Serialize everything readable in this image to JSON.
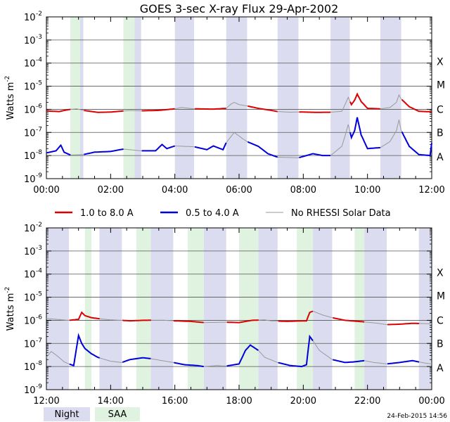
{
  "chart_data": [
    {
      "type": "line",
      "title": "GOES 3-sec X-ray Flux   29-Apr-2002",
      "ylabel": "Watts m",
      "ylabel_superscript": "-2",
      "y_scale": "log",
      "ylim": [
        1e-09,
        0.01
      ],
      "y_ticks": [
        {
          "base": "10",
          "exp": "-2"
        },
        {
          "base": "10",
          "exp": "-3"
        },
        {
          "base": "10",
          "exp": "-4"
        },
        {
          "base": "10",
          "exp": "-5"
        },
        {
          "base": "10",
          "exp": "-6"
        },
        {
          "base": "10",
          "exp": "-7"
        },
        {
          "base": "10",
          "exp": "-8"
        },
        {
          "base": "10",
          "exp": "-9"
        }
      ],
      "x_ticks": [
        "00:00",
        "02:00",
        "04:00",
        "06:00",
        "08:00",
        "10:00",
        "12:00"
      ],
      "xlim_hours": [
        0,
        12
      ],
      "class_labels": [
        "A",
        "B",
        "C",
        "M",
        "X"
      ],
      "grid": "horizontal",
      "night_bands_hours": [
        [
          0.75,
          1.15
        ],
        [
          2.4,
          2.95
        ],
        [
          4.0,
          4.6
        ],
        [
          5.6,
          6.25
        ],
        [
          7.2,
          7.85
        ],
        [
          8.85,
          9.45
        ],
        [
          10.4,
          11.05
        ]
      ],
      "saa_bands_hours": [
        [
          0.75,
          1.05
        ],
        [
          2.4,
          2.75
        ]
      ],
      "series": [
        {
          "name": "1.0 to 8.0 A",
          "color": "#dd0000",
          "points": [
            [
              0,
              8.5e-07
            ],
            [
              0.4,
              8e-07
            ],
            [
              0.6,
              9.2e-07
            ],
            [
              0.75,
              1e-06
            ],
            [
              0.95,
              1.05e-06
            ],
            [
              1.15,
              9e-07
            ],
            [
              1.6,
              7.4e-07
            ],
            [
              2.0,
              7.6e-07
            ],
            [
              2.4,
              8.5e-07
            ],
            [
              2.6,
              8.8e-07
            ],
            [
              2.95,
              8.6e-07
            ],
            [
              3.5,
              9e-07
            ],
            [
              4.0,
              1.05e-06
            ],
            [
              4.2,
              1.2e-06
            ],
            [
              4.6,
              1.05e-06
            ],
            [
              5.2,
              1.02e-06
            ],
            [
              5.6,
              1.1e-06
            ],
            [
              5.75,
              1.7e-06
            ],
            [
              5.85,
              2e-06
            ],
            [
              6.0,
              1.6e-06
            ],
            [
              6.25,
              1.4e-06
            ],
            [
              6.6,
              1.1e-06
            ],
            [
              7.0,
              9e-07
            ],
            [
              7.2,
              8e-07
            ],
            [
              7.6,
              7.5e-07
            ],
            [
              7.85,
              7.7e-07
            ],
            [
              8.4,
              7.4e-07
            ],
            [
              8.85,
              7.5e-07
            ],
            [
              9.2,
              8.2e-07
            ],
            [
              9.3,
              1.6e-06
            ],
            [
              9.4,
              3.3e-06
            ],
            [
              9.5,
              1.6e-06
            ],
            [
              9.6,
              2.5e-06
            ],
            [
              9.68,
              4.6e-06
            ],
            [
              9.8,
              2.2e-06
            ],
            [
              10.0,
              1.1e-06
            ],
            [
              10.4,
              1.05e-06
            ],
            [
              10.7,
              1.2e-06
            ],
            [
              10.9,
              2e-06
            ],
            [
              10.98,
              4.2e-06
            ],
            [
              11.05,
              2.8e-06
            ],
            [
              11.3,
              1.3e-06
            ],
            [
              11.6,
              8.2e-07
            ],
            [
              12,
              7.8e-07
            ]
          ]
        },
        {
          "name": "0.5 to 4.0 A",
          "color": "#0000dd",
          "points": [
            [
              0,
              1.3e-08
            ],
            [
              0.3,
              1.6e-08
            ],
            [
              0.45,
              2.8e-08
            ],
            [
              0.55,
              1.4e-08
            ],
            [
              0.75,
              1.05e-08
            ],
            [
              1.15,
              1.1e-08
            ],
            [
              1.5,
              1.4e-08
            ],
            [
              2.0,
              1.5e-08
            ],
            [
              2.3,
              1.8e-08
            ],
            [
              2.4,
              1.9e-08
            ],
            [
              2.95,
              1.6e-08
            ],
            [
              3.4,
              1.6e-08
            ],
            [
              3.6,
              3e-08
            ],
            [
              3.75,
              2e-08
            ],
            [
              4.0,
              2.6e-08
            ],
            [
              4.6,
              2.4e-08
            ],
            [
              5.0,
              1.8e-08
            ],
            [
              5.2,
              2.6e-08
            ],
            [
              5.5,
              1.8e-08
            ],
            [
              5.6,
              3.6e-08
            ],
            [
              5.85,
              1e-07
            ],
            [
              6.1,
              5.5e-08
            ],
            [
              6.25,
              4e-08
            ],
            [
              6.6,
              2.5e-08
            ],
            [
              6.9,
              1.2e-08
            ],
            [
              7.2,
              8.5e-09
            ],
            [
              7.85,
              8e-09
            ],
            [
              8.3,
              1.2e-08
            ],
            [
              8.6,
              1e-08
            ],
            [
              8.85,
              1e-08
            ],
            [
              9.2,
              2.5e-08
            ],
            [
              9.3,
              7e-08
            ],
            [
              9.4,
              2.2e-07
            ],
            [
              9.5,
              6e-08
            ],
            [
              9.6,
              1.2e-07
            ],
            [
              9.68,
              4.5e-07
            ],
            [
              9.8,
              8e-08
            ],
            [
              10.0,
              2e-08
            ],
            [
              10.4,
              2.2e-08
            ],
            [
              10.7,
              4e-08
            ],
            [
              10.9,
              1.2e-07
            ],
            [
              10.98,
              3.5e-07
            ],
            [
              11.05,
              1.2e-07
            ],
            [
              11.3,
              2.5e-08
            ],
            [
              11.6,
              1.1e-08
            ],
            [
              11.95,
              1e-08
            ],
            [
              12,
              3.5e-08
            ]
          ]
        }
      ],
      "no_rhessi_segments_hours": [
        [
          0.75,
          1.15
        ],
        [
          2.4,
          2.95
        ],
        [
          4.0,
          4.6
        ],
        [
          5.6,
          6.25
        ],
        [
          7.2,
          7.85
        ],
        [
          8.85,
          9.45
        ],
        [
          10.4,
          11.05
        ]
      ]
    },
    {
      "type": "line",
      "ylabel": "Watts m",
      "ylabel_superscript": "-2",
      "y_scale": "log",
      "ylim": [
        1e-09,
        0.01
      ],
      "y_ticks": [
        {
          "base": "10",
          "exp": "-2"
        },
        {
          "base": "10",
          "exp": "-3"
        },
        {
          "base": "10",
          "exp": "-4"
        },
        {
          "base": "10",
          "exp": "-5"
        },
        {
          "base": "10",
          "exp": "-6"
        },
        {
          "base": "10",
          "exp": "-7"
        },
        {
          "base": "10",
          "exp": "-8"
        },
        {
          "base": "10",
          "exp": "-9"
        }
      ],
      "x_ticks": [
        "12:00",
        "14:00",
        "16:00",
        "18:00",
        "20:00",
        "22:00",
        "00:00"
      ],
      "xlim_hours": [
        12,
        24
      ],
      "class_labels": [
        "A",
        "B",
        "C",
        "M",
        "X"
      ],
      "grid": "horizontal",
      "night_bands_hours": [
        [
          12.0,
          12.7
        ],
        [
          13.65,
          14.35
        ],
        [
          15.25,
          15.95
        ],
        [
          16.9,
          17.6
        ],
        [
          18.6,
          19.2
        ],
        [
          20.3,
          20.9
        ],
        [
          21.9,
          22.6
        ],
        [
          23.6,
          24.0
        ]
      ],
      "saa_bands_hours": [
        [
          13.2,
          13.4
        ],
        [
          14.8,
          15.25
        ],
        [
          16.4,
          16.9
        ],
        [
          18.0,
          18.6
        ],
        [
          19.8,
          20.3
        ],
        [
          21.6,
          21.9
        ]
      ],
      "series": [
        {
          "name": "1.0 to 8.0 A",
          "color": "#dd0000",
          "points": [
            [
              12.0,
              1.2e-06
            ],
            [
              12.5,
              1.05e-06
            ],
            [
              12.7,
              1e-06
            ],
            [
              13.0,
              1.1e-06
            ],
            [
              13.1,
              2.2e-06
            ],
            [
              13.2,
              1.6e-06
            ],
            [
              13.4,
              1.3e-06
            ],
            [
              13.7,
              1.15e-06
            ],
            [
              14.0,
              1.05e-06
            ],
            [
              14.35,
              1e-06
            ],
            [
              14.6,
              9.5e-07
            ],
            [
              15.0,
              1e-06
            ],
            [
              15.6,
              1.02e-06
            ],
            [
              16.0,
              9.5e-07
            ],
            [
              16.5,
              9e-07
            ],
            [
              16.9,
              8e-07
            ],
            [
              17.3,
              8.1e-07
            ],
            [
              17.6,
              8.3e-07
            ],
            [
              18.0,
              8e-07
            ],
            [
              18.4,
              1e-06
            ],
            [
              18.8,
              1.05e-06
            ],
            [
              19.0,
              9.5e-07
            ],
            [
              19.5,
              9e-07
            ],
            [
              19.8,
              9.3e-07
            ],
            [
              20.1,
              9.5e-07
            ],
            [
              20.2,
              2.2e-06
            ],
            [
              20.3,
              2.5e-06
            ],
            [
              20.6,
              1.7e-06
            ],
            [
              20.9,
              1.3e-06
            ],
            [
              21.3,
              1e-06
            ],
            [
              21.8,
              8.8e-07
            ],
            [
              22.3,
              7.5e-07
            ],
            [
              22.6,
              6.5e-07
            ],
            [
              23.0,
              6.8e-07
            ],
            [
              23.4,
              7.4e-07
            ],
            [
              23.8,
              7.2e-07
            ],
            [
              24.0,
              7e-07
            ]
          ]
        },
        {
          "name": "0.5 to 4.0 A",
          "color": "#0000dd",
          "points": [
            [
              12.0,
              2.5e-08
            ],
            [
              12.15,
              4.5e-08
            ],
            [
              12.35,
              2.8e-08
            ],
            [
              12.55,
              1.6e-08
            ],
            [
              12.7,
              1.3e-08
            ],
            [
              12.85,
              1.1e-08
            ],
            [
              13.0,
              2.2e-07
            ],
            [
              13.1,
              1e-07
            ],
            [
              13.2,
              6e-08
            ],
            [
              13.4,
              3.6e-08
            ],
            [
              13.6,
              2.5e-08
            ],
            [
              14.0,
              1.7e-08
            ],
            [
              14.35,
              1.5e-08
            ],
            [
              14.6,
              2e-08
            ],
            [
              15.0,
              2.4e-08
            ],
            [
              15.25,
              2.2e-08
            ],
            [
              15.6,
              1.8e-08
            ],
            [
              15.95,
              1.5e-08
            ],
            [
              16.3,
              1.2e-08
            ],
            [
              16.7,
              1.1e-08
            ],
            [
              16.9,
              1e-08
            ],
            [
              17.3,
              1.1e-08
            ],
            [
              17.6,
              1.05e-08
            ],
            [
              18.0,
              1.3e-08
            ],
            [
              18.2,
              5e-08
            ],
            [
              18.35,
              8.5e-08
            ],
            [
              18.6,
              5e-08
            ],
            [
              18.8,
              2.5e-08
            ],
            [
              19.2,
              1.5e-08
            ],
            [
              19.6,
              1.1e-08
            ],
            [
              19.95,
              1e-08
            ],
            [
              20.1,
              1.2e-08
            ],
            [
              20.2,
              2e-07
            ],
            [
              20.3,
              1.3e-07
            ],
            [
              20.5,
              5e-08
            ],
            [
              20.9,
              2e-08
            ],
            [
              21.3,
              1.5e-08
            ],
            [
              21.6,
              1.6e-08
            ],
            [
              21.9,
              1.8e-08
            ],
            [
              22.2,
              1.5e-08
            ],
            [
              22.6,
              1.3e-08
            ],
            [
              23.0,
              1.5e-08
            ],
            [
              23.4,
              1.8e-08
            ],
            [
              23.8,
              1.4e-08
            ],
            [
              24.0,
              1.3e-08
            ]
          ]
        }
      ],
      "no_rhessi_segments_hours": [
        [
          12.0,
          12.7
        ],
        [
          13.65,
          14.35
        ],
        [
          15.25,
          15.95
        ],
        [
          16.9,
          17.6
        ],
        [
          18.6,
          19.2
        ],
        [
          20.3,
          20.9
        ],
        [
          21.9,
          22.6
        ],
        [
          23.6,
          24.0
        ]
      ]
    }
  ],
  "legend": {
    "items": [
      {
        "label": "1.0 to 8.0 A",
        "color": "#dd0000"
      },
      {
        "label": "0.5 to 4.0 A",
        "color": "#0000dd"
      },
      {
        "label": "No RHESSI Solar Data",
        "color": "#999999"
      }
    ]
  },
  "band_legend": {
    "night": "Night",
    "saa": "SAA",
    "night_color": "#dcdcf0",
    "saa_color": "#e0f2e0"
  },
  "footer": {
    "timestamp": "24-Feb-2015 14:56"
  }
}
